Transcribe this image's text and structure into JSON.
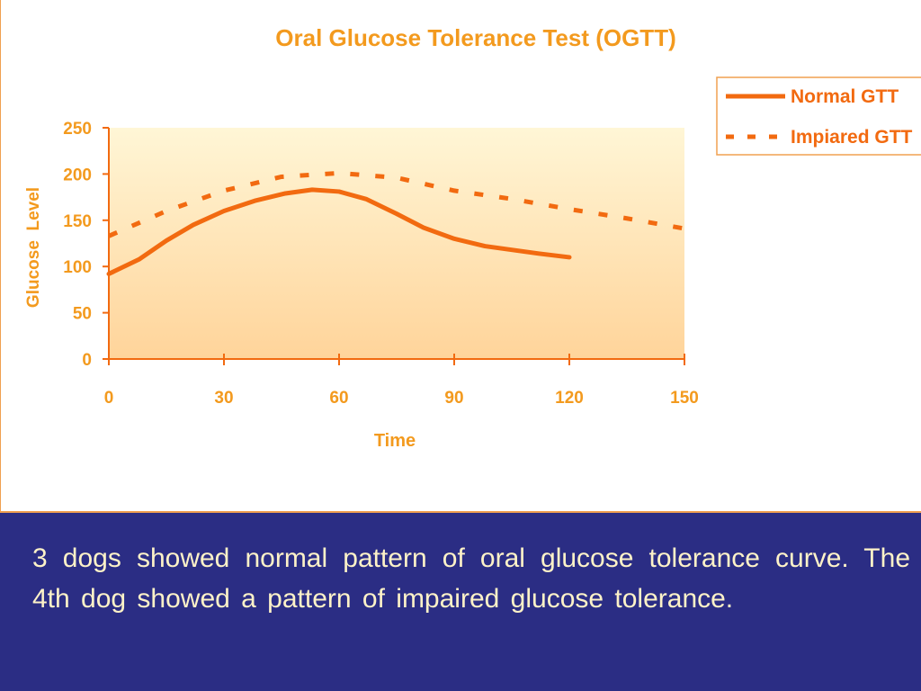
{
  "chart_data": {
    "type": "line",
    "title": "Oral Glucose Tolerance Test (OGTT)",
    "xlabel": "Time",
    "ylabel": "Glucose  Level",
    "xlim": [
      0,
      150
    ],
    "ylim": [
      0,
      250
    ],
    "xticks": [
      0,
      30,
      60,
      90,
      120,
      150
    ],
    "yticks": [
      0,
      50,
      100,
      150,
      200,
      250
    ],
    "grid": false,
    "legend_position": "top-right",
    "colors": {
      "title": "#f39a1e",
      "labels": "#f39a1e",
      "line": "#f26a10",
      "plot_top": "#fff6d6",
      "plot_bottom": "#ffd49a",
      "axis": "#f26a10"
    },
    "series": [
      {
        "name": "Normal GTT",
        "style": "solid",
        "x": [
          0,
          8,
          15,
          22,
          30,
          38,
          46,
          53,
          60,
          67,
          75,
          82,
          90,
          98,
          105,
          112,
          120
        ],
        "y": [
          92,
          108,
          128,
          145,
          160,
          171,
          179,
          183,
          181,
          173,
          157,
          142,
          130,
          122,
          118,
          114,
          110
        ]
      },
      {
        "name": "Impiared GTT",
        "style": "dashed",
        "x": [
          0,
          15,
          30,
          45,
          60,
          75,
          90,
          105,
          120,
          135,
          150
        ],
        "y": [
          133,
          160,
          182,
          197,
          201,
          196,
          182,
          173,
          162,
          152,
          141
        ]
      }
    ]
  },
  "caption": "3 dogs showed normal pattern of oral glucose tolerance curve.  The 4th dog showed a pattern of impaired glucose tolerance."
}
